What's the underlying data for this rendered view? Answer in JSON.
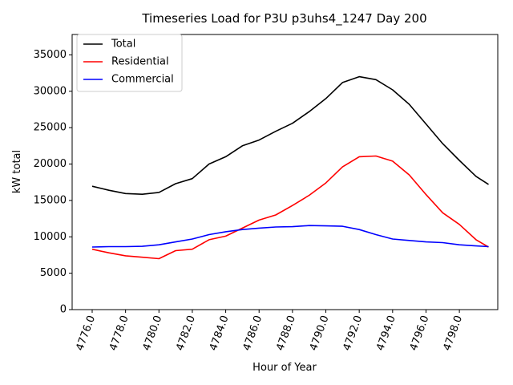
{
  "chart_data": {
    "type": "line",
    "title": "Timeseries Load for P3U p3uhs4_1247  Day 200",
    "xlabel": "Hour of Year",
    "ylabel": "kW total",
    "xlim": [
      4774.8,
      4800.3
    ],
    "ylim": [
      0,
      37800
    ],
    "xticks": [
      4776,
      4778,
      4780,
      4782,
      4784,
      4786,
      4788,
      4790,
      4792,
      4794,
      4796,
      4798
    ],
    "xtick_labels": [
      "4776.0",
      "4778.0",
      "4780.0",
      "4782.0",
      "4784.0",
      "4786.0",
      "4788.0",
      "4790.0",
      "4792.0",
      "4794.0",
      "4796.0",
      "4798.0"
    ],
    "yticks": [
      0,
      5000,
      10000,
      15000,
      20000,
      25000,
      30000,
      35000
    ],
    "ytick_labels": [
      "0",
      "5000",
      "10000",
      "15000",
      "20000",
      "25000",
      "30000",
      "35000"
    ],
    "legend_position": "top-left",
    "x": [
      4776,
      4777,
      4778,
      4779,
      4780,
      4781,
      4782,
      4783,
      4784,
      4785,
      4786,
      4787,
      4788,
      4789,
      4790,
      4791,
      4792,
      4793,
      4794,
      4795,
      4796,
      4797,
      4798,
      4799,
      4799.75
    ],
    "series": [
      {
        "name": "Total",
        "color": "#000000",
        "values": [
          16950,
          16400,
          15950,
          15850,
          16100,
          17300,
          18000,
          20000,
          21000,
          22500,
          23300,
          24500,
          25600,
          27200,
          29000,
          31200,
          32000,
          31600,
          30200,
          28200,
          25500,
          22800,
          20500,
          18300,
          17200
        ]
      },
      {
        "name": "Residential",
        "color": "#ff0000",
        "values": [
          8300,
          7800,
          7400,
          7200,
          7000,
          8100,
          8300,
          9600,
          10100,
          11200,
          12300,
          13000,
          14300,
          15700,
          17400,
          19600,
          21000,
          21100,
          20400,
          18500,
          15800,
          13300,
          11700,
          9600,
          8600
        ]
      },
      {
        "name": "Commercial",
        "color": "#0000ff",
        "values": [
          8600,
          8650,
          8650,
          8700,
          8900,
          9300,
          9700,
          10300,
          10700,
          11000,
          11200,
          11350,
          11400,
          11550,
          11500,
          11450,
          11000,
          10300,
          9700,
          9500,
          9300,
          9200,
          8900,
          8750,
          8650
        ]
      }
    ]
  }
}
